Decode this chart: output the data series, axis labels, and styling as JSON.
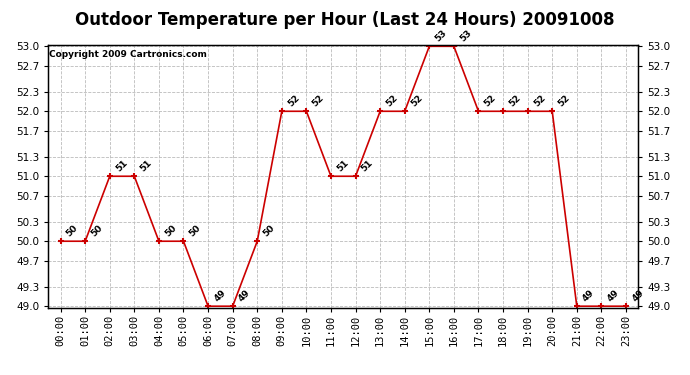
{
  "title": "Outdoor Temperature per Hour (Last 24 Hours) 20091008",
  "copyright": "Copyright 2009 Cartronics.com",
  "hours": [
    "00:00",
    "01:00",
    "02:00",
    "03:00",
    "04:00",
    "05:00",
    "06:00",
    "07:00",
    "08:00",
    "09:00",
    "10:00",
    "11:00",
    "12:00",
    "13:00",
    "14:00",
    "15:00",
    "16:00",
    "17:00",
    "18:00",
    "19:00",
    "20:00",
    "21:00",
    "22:00",
    "23:00"
  ],
  "values": [
    50,
    50,
    51,
    51,
    50,
    50,
    49,
    49,
    50,
    52,
    52,
    51,
    51,
    52,
    52,
    53,
    53,
    52,
    52,
    52,
    52,
    49,
    49,
    49
  ],
  "ylim_min": 49.0,
  "ylim_max": 53.0,
  "yticks": [
    49.0,
    49.3,
    49.7,
    50.0,
    50.3,
    50.7,
    51.0,
    51.3,
    51.7,
    52.0,
    52.3,
    52.7,
    53.0
  ],
  "line_color": "#cc0000",
  "marker_color": "#cc0000",
  "bg_color": "#ffffff",
  "grid_color": "#bbbbbb",
  "title_fontsize": 12,
  "copyright_fontsize": 6.5,
  "label_fontsize": 6.5,
  "tick_fontsize": 7.5
}
